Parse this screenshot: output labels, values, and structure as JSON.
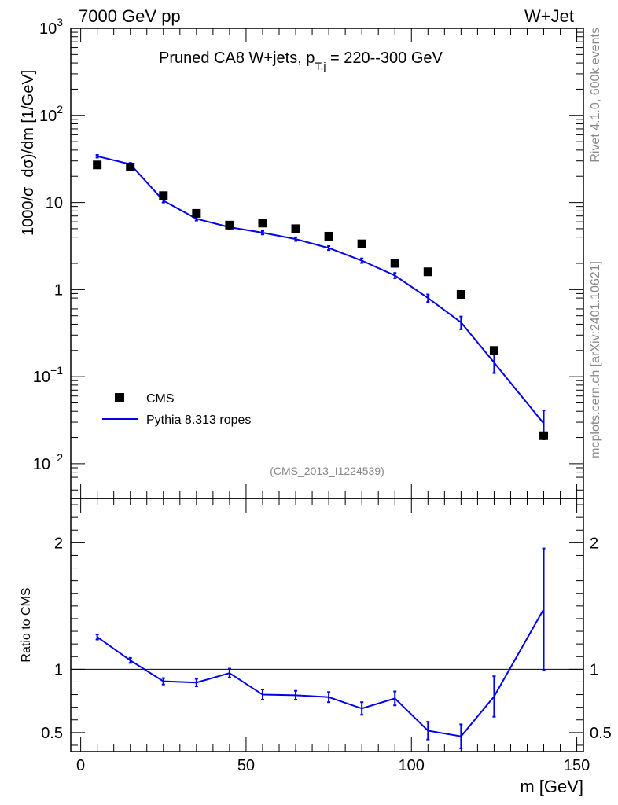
{
  "header": {
    "left": "7000 GeV pp",
    "right": "W+Jet"
  },
  "side_labels": {
    "rivet": "Rivet 4.1.0,  600k events",
    "mcplots": "mcplots.cern.ch [arXiv:2401.10621]"
  },
  "colors": {
    "data": "#000000",
    "mc": "#0000ee",
    "watermark": "#888888"
  },
  "chart_data": [
    {
      "type": "scatter",
      "title_main": "Pruned CA8 W+jets, p",
      "title_sub": "T,j",
      "title_tail": " = 220--300 GeV",
      "ylabel_parts": [
        "1000/σ",
        "dσ)/dm [1/GeV]"
      ],
      "yscale": "log",
      "ylim": [
        0.004,
        1000
      ],
      "xlim": [
        -3,
        152
      ],
      "ytick_labels": [
        {
          "value": 1000,
          "base": "10",
          "exp": "3"
        },
        {
          "value": 100,
          "base": "10",
          "exp": "2"
        },
        {
          "value": 10,
          "base": "10",
          "exp": ""
        },
        {
          "value": 1,
          "base": "1",
          "exp": ""
        },
        {
          "value": 0.1,
          "base": "10",
          "exp": "−1"
        },
        {
          "value": 0.01,
          "base": "10",
          "exp": "−2"
        }
      ],
      "watermark": "(CMS_2013_I1224539)",
      "legend": {
        "placement": "bottom-left",
        "entries": [
          "CMS",
          "Pythia 8.313 ropes"
        ]
      },
      "series": [
        {
          "name": "CMS",
          "style": "markers",
          "x": [
            5,
            15,
            25,
            35,
            45,
            55,
            65,
            75,
            85,
            95,
            105,
            115,
            125,
            140
          ],
          "y": [
            27,
            25.5,
            12,
            7.5,
            5.5,
            5.8,
            5.0,
            4.1,
            3.35,
            2.0,
            1.6,
            0.88,
            0.2,
            0.021
          ]
        },
        {
          "name": "Pythia 8.313 ropes",
          "style": "line",
          "x": [
            5,
            15,
            25,
            35,
            45,
            55,
            65,
            75,
            85,
            95,
            105,
            115,
            125,
            140
          ],
          "y": [
            34,
            27.5,
            10.5,
            6.5,
            5.2,
            4.5,
            3.8,
            3.0,
            2.15,
            1.45,
            0.8,
            0.42,
            0.145,
            0.029
          ],
          "err_low": [
            1.2,
            1.0,
            0.5,
            0.3,
            0.25,
            0.2,
            0.18,
            0.16,
            0.13,
            0.1,
            0.08,
            0.07,
            0.035,
            0.01
          ],
          "err_high": [
            1.2,
            1.0,
            0.5,
            0.3,
            0.25,
            0.2,
            0.18,
            0.16,
            0.13,
            0.1,
            0.08,
            0.07,
            0.035,
            0.012
          ]
        }
      ]
    },
    {
      "type": "line",
      "ylabel": "Ratio to CMS",
      "xlabel": "m [GeV]",
      "ylim": [
        0.35,
        2.35
      ],
      "xlim": [
        -3,
        152
      ],
      "reference_line": 1,
      "ytick_labels": [
        "2",
        "1",
        "0.5"
      ],
      "ytick_values": [
        2,
        1,
        0.5
      ],
      "xtick_labels": [
        "0",
        "50",
        "100",
        "150"
      ],
      "xtick_values": [
        0,
        50,
        100,
        150
      ],
      "series": [
        {
          "name": "Pythia 8.313 ropes / CMS",
          "x": [
            5,
            15,
            25,
            35,
            45,
            55,
            65,
            75,
            85,
            95,
            105,
            115,
            125,
            140
          ],
          "y": [
            1.255,
            1.07,
            0.905,
            0.895,
            0.97,
            0.8,
            0.795,
            0.78,
            0.69,
            0.77,
            0.515,
            0.47,
            0.785,
            1.475
          ],
          "err": [
            0.02,
            0.02,
            0.025,
            0.03,
            0.035,
            0.04,
            0.035,
            0.04,
            0.05,
            0.055,
            0.07,
            0.095,
            0.16,
            0.48
          ]
        }
      ]
    }
  ]
}
